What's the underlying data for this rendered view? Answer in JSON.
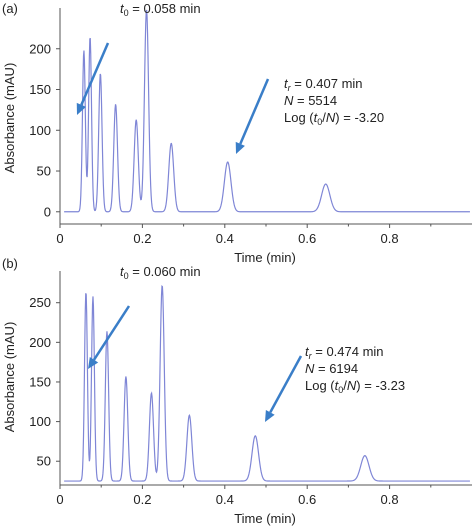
{
  "chart_data": [
    {
      "panel": "(a)",
      "type": "line",
      "xlabel": "Time (min)",
      "ylabel": "Absorbance (mAU)",
      "xlim": [
        0,
        1.0
      ],
      "ylim": [
        -15,
        250
      ],
      "x_ticks": [
        0,
        0.2,
        0.4,
        0.6,
        0.8
      ],
      "x_tick_labels": [
        "0",
        "0.2",
        "0.4",
        "0.6",
        "0.8"
      ],
      "y_ticks": [
        0,
        50,
        100,
        150,
        200
      ],
      "y_tick_labels": [
        "0",
        "50",
        "100",
        "150",
        "200"
      ],
      "grid": false,
      "baseline": 0,
      "peaks": [
        {
          "t": 0.058,
          "height": 198,
          "width": 0.0035
        },
        {
          "t": 0.073,
          "height": 215,
          "width": 0.0035
        },
        {
          "t": 0.098,
          "height": 170,
          "width": 0.004
        },
        {
          "t": 0.135,
          "height": 132,
          "width": 0.0045
        },
        {
          "t": 0.185,
          "height": 113,
          "width": 0.005
        },
        {
          "t": 0.21,
          "height": 248,
          "width": 0.005
        },
        {
          "t": 0.27,
          "height": 84,
          "width": 0.006
        },
        {
          "t": 0.407,
          "height": 61,
          "width": 0.008
        },
        {
          "t": 0.645,
          "height": 34,
          "width": 0.01
        }
      ],
      "annotations": [
        {
          "parts": [
            {
              "t": "t",
              "italic": true
            },
            {
              "t": "0",
              "sub": true
            },
            {
              "t": " = 0.058 min"
            }
          ]
        },
        {
          "parts": [
            {
              "t": "t",
              "italic": true
            },
            {
              "t": "r",
              "sub": true,
              "italic": true
            },
            {
              "t": " = 0.407 min"
            }
          ]
        },
        {
          "parts": [
            {
              "t": "N",
              "italic": true
            },
            {
              "t": " = 5514"
            }
          ]
        },
        {
          "parts": [
            {
              "t": "Log ("
            },
            {
              "t": "t",
              "italic": true
            },
            {
              "t": "0",
              "sub": true
            },
            {
              "t": "/"
            },
            {
              "t": "N",
              "italic": true
            },
            {
              "t": ") = -3.20"
            }
          ]
        }
      ]
    },
    {
      "panel": "(b)",
      "type": "line",
      "xlabel": "Time (min)",
      "ylabel": "Absorbance (mAU)",
      "xlim": [
        0,
        1.0
      ],
      "ylim": [
        20,
        290
      ],
      "x_ticks": [
        0,
        0.2,
        0.4,
        0.6,
        0.8
      ],
      "x_tick_labels": [
        "0",
        "0.2",
        "0.4",
        "0.6",
        "0.8"
      ],
      "y_ticks": [
        50,
        100,
        150,
        200,
        250
      ],
      "y_tick_labels": [
        "50",
        "100",
        "150",
        "200",
        "250"
      ],
      "grid": false,
      "baseline": 25,
      "peaks": [
        {
          "t": 0.063,
          "height": 264,
          "width": 0.0035
        },
        {
          "t": 0.08,
          "height": 258,
          "width": 0.0035
        },
        {
          "t": 0.114,
          "height": 214,
          "width": 0.004
        },
        {
          "t": 0.16,
          "height": 157,
          "width": 0.0045
        },
        {
          "t": 0.222,
          "height": 136,
          "width": 0.005
        },
        {
          "t": 0.248,
          "height": 272,
          "width": 0.005
        },
        {
          "t": 0.314,
          "height": 108,
          "width": 0.006
        },
        {
          "t": 0.474,
          "height": 82,
          "width": 0.008
        },
        {
          "t": 0.74,
          "height": 57,
          "width": 0.01
        }
      ],
      "annotations": [
        {
          "parts": [
            {
              "t": "t",
              "italic": true
            },
            {
              "t": "0",
              "sub": true
            },
            {
              "t": " = 0.060 min"
            }
          ]
        },
        {
          "parts": [
            {
              "t": "t",
              "italic": true
            },
            {
              "t": "r",
              "sub": true,
              "italic": true
            },
            {
              "t": " = 0.474 min"
            }
          ]
        },
        {
          "parts": [
            {
              "t": "N",
              "italic": true
            },
            {
              "t": " = 6194"
            }
          ]
        },
        {
          "parts": [
            {
              "t": "Log ("
            },
            {
              "t": "t",
              "italic": true
            },
            {
              "t": "0",
              "sub": true
            },
            {
              "t": "/"
            },
            {
              "t": "N",
              "italic": true
            },
            {
              "t": ") = -3.23"
            }
          ]
        }
      ]
    }
  ],
  "colors": {
    "trace": "#7f86d6",
    "arrow": "#3a7ec8",
    "axis": "#555555",
    "text": "#222222"
  }
}
